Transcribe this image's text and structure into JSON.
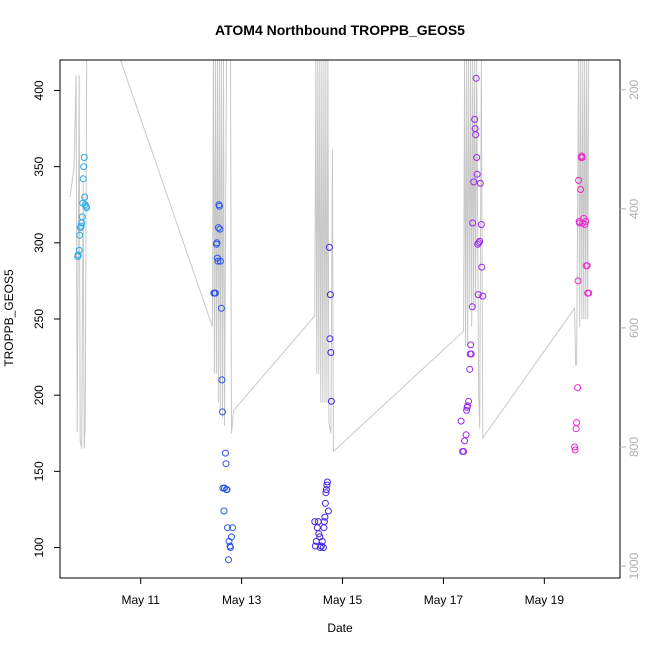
{
  "chart_data": {
    "type": "scatter",
    "title": "ATOM4 Northbound TROPPB_GEOS5",
    "xlabel": "Date",
    "ylabel": "TROPPB_GEOS5",
    "x_unit": "day of May",
    "xlim": [
      9.4,
      20.5
    ],
    "ylim": [
      80,
      420
    ],
    "x_ticks": [
      {
        "value": 11,
        "label": "May 11"
      },
      {
        "value": 13,
        "label": "May 13"
      },
      {
        "value": 15,
        "label": "May 15"
      },
      {
        "value": 17,
        "label": "May 17"
      },
      {
        "value": 19,
        "label": "May 19"
      }
    ],
    "y_ticks": [
      100,
      150,
      200,
      250,
      300,
      350,
      400
    ],
    "right_axis": {
      "ylim": [
        1020,
        150
      ],
      "ticks": [
        200,
        400,
        600,
        800,
        1000
      ],
      "color": "#b0b0b0"
    },
    "colors": {
      "altitude_line": "#c8c8c8",
      "frame": "#000000",
      "group1": "#2aa8e8",
      "group2": "#2a55ee",
      "group3": "#3f26e8",
      "group4": "#9a28ee",
      "group5": "#ee28d2"
    },
    "series": [
      {
        "color_key": "group1",
        "points": [
          [
            9.75,
            291
          ],
          [
            9.76,
            292
          ],
          [
            9.78,
            295
          ],
          [
            9.79,
            305
          ],
          [
            9.8,
            310
          ],
          [
            9.82,
            311
          ],
          [
            9.83,
            313
          ],
          [
            9.84,
            317
          ],
          [
            9.85,
            326
          ],
          [
            9.86,
            342
          ],
          [
            9.87,
            350
          ],
          [
            9.88,
            356
          ],
          [
            9.89,
            330
          ],
          [
            9.9,
            325
          ],
          [
            9.92,
            324
          ],
          [
            9.93,
            323
          ]
        ]
      },
      {
        "color_key": "group2",
        "points": [
          [
            12.45,
            267
          ],
          [
            12.46,
            267
          ],
          [
            12.48,
            267
          ],
          [
            12.5,
            299
          ],
          [
            12.51,
            300
          ],
          [
            12.52,
            290
          ],
          [
            12.53,
            288
          ],
          [
            12.54,
            310
          ],
          [
            12.55,
            325
          ],
          [
            12.56,
            324
          ],
          [
            12.57,
            309
          ],
          [
            12.58,
            288
          ],
          [
            12.6,
            257
          ],
          [
            12.61,
            210
          ],
          [
            12.62,
            189
          ],
          [
            12.63,
            139
          ],
          [
            12.66,
            139
          ],
          [
            12.68,
            162
          ],
          [
            12.69,
            155
          ],
          [
            12.7,
            138
          ],
          [
            12.71,
            138
          ],
          [
            12.65,
            124
          ],
          [
            12.72,
            113
          ],
          [
            12.75,
            104
          ],
          [
            12.77,
            101
          ],
          [
            12.78,
            100
          ],
          [
            12.8,
            107
          ],
          [
            12.82,
            113
          ],
          [
            12.74,
            92
          ]
        ]
      },
      {
        "color_key": "group3",
        "points": [
          [
            14.45,
            117
          ],
          [
            14.46,
            101
          ],
          [
            14.48,
            104
          ],
          [
            14.5,
            113
          ],
          [
            14.52,
            117
          ],
          [
            14.53,
            109
          ],
          [
            14.55,
            107
          ],
          [
            14.56,
            100
          ],
          [
            14.58,
            101
          ],
          [
            14.6,
            104
          ],
          [
            14.62,
            100
          ],
          [
            14.63,
            113
          ],
          [
            14.64,
            117
          ],
          [
            14.65,
            120
          ],
          [
            14.66,
            129
          ],
          [
            14.67,
            136
          ],
          [
            14.68,
            138
          ],
          [
            14.69,
            141
          ],
          [
            14.7,
            143
          ],
          [
            14.72,
            124
          ],
          [
            14.74,
            297
          ],
          [
            14.76,
            266
          ],
          [
            14.75,
            237
          ],
          [
            14.77,
            228
          ],
          [
            14.78,
            196
          ]
        ]
      },
      {
        "color_key": "group4",
        "points": [
          [
            17.38,
            163
          ],
          [
            17.4,
            163
          ],
          [
            17.42,
            170
          ],
          [
            17.45,
            174
          ],
          [
            17.35,
            183
          ],
          [
            17.46,
            190
          ],
          [
            17.47,
            192
          ],
          [
            17.48,
            193
          ],
          [
            17.5,
            196
          ],
          [
            17.52,
            217
          ],
          [
            17.53,
            227
          ],
          [
            17.54,
            233
          ],
          [
            17.55,
            227
          ],
          [
            17.57,
            258
          ],
          [
            17.58,
            313
          ],
          [
            17.6,
            340
          ],
          [
            17.62,
            381
          ],
          [
            17.63,
            375
          ],
          [
            17.64,
            371
          ],
          [
            17.65,
            408
          ],
          [
            17.66,
            356
          ],
          [
            17.67,
            345
          ],
          [
            17.68,
            299
          ],
          [
            17.7,
            300
          ],
          [
            17.72,
            301
          ],
          [
            17.73,
            339
          ],
          [
            17.75,
            312
          ],
          [
            17.76,
            284
          ],
          [
            17.69,
            266
          ],
          [
            17.78,
            265
          ]
        ]
      },
      {
        "color_key": "group5",
        "points": [
          [
            19.6,
            166
          ],
          [
            19.61,
            164
          ],
          [
            19.63,
            178
          ],
          [
            19.64,
            182
          ],
          [
            19.66,
            205
          ],
          [
            19.67,
            275
          ],
          [
            19.68,
            341
          ],
          [
            19.69,
            314
          ],
          [
            19.7,
            313
          ],
          [
            19.72,
            335
          ],
          [
            19.73,
            356
          ],
          [
            19.74,
            357
          ],
          [
            19.75,
            356
          ],
          [
            19.76,
            313
          ],
          [
            19.78,
            316
          ],
          [
            19.8,
            312
          ],
          [
            19.82,
            314
          ],
          [
            19.83,
            285
          ],
          [
            19.85,
            285
          ],
          [
            19.86,
            267
          ],
          [
            19.88,
            267
          ]
        ]
      }
    ],
    "altitude_trace": [
      [
        9.6,
        330
      ],
      [
        9.68,
        350
      ],
      [
        9.72,
        410
      ],
      [
        9.74,
        176
      ],
      [
        9.78,
        410
      ],
      [
        9.8,
        170
      ],
      [
        9.83,
        165
      ],
      [
        9.86,
        340
      ],
      [
        9.88,
        165
      ],
      [
        9.9,
        180
      ],
      [
        9.93,
        420
      ],
      [
        9.97,
        420
      ],
      [
        10.6,
        420
      ],
      [
        12.42,
        245
      ],
      [
        12.44,
        420
      ],
      [
        12.46,
        214
      ],
      [
        12.48,
        420
      ],
      [
        12.5,
        214
      ],
      [
        12.52,
        420
      ],
      [
        12.54,
        195
      ],
      [
        12.56,
        420
      ],
      [
        12.58,
        190
      ],
      [
        12.6,
        420
      ],
      [
        12.62,
        185
      ],
      [
        12.64,
        420
      ],
      [
        12.66,
        180
      ],
      [
        12.7,
        420
      ],
      [
        12.74,
        420
      ],
      [
        12.78,
        420
      ],
      [
        12.8,
        175
      ],
      [
        12.84,
        190
      ],
      [
        14.45,
        252
      ],
      [
        14.47,
        420
      ],
      [
        14.49,
        214
      ],
      [
        14.51,
        420
      ],
      [
        14.53,
        214
      ],
      [
        14.55,
        420
      ],
      [
        14.57,
        195
      ],
      [
        14.59,
        420
      ],
      [
        14.61,
        195
      ],
      [
        14.63,
        420
      ],
      [
        14.65,
        195
      ],
      [
        14.67,
        420
      ],
      [
        14.69,
        195
      ],
      [
        14.71,
        420
      ],
      [
        14.73,
        182
      ],
      [
        14.77,
        175
      ],
      [
        14.8,
        361
      ],
      [
        14.82,
        163
      ],
      [
        17.4,
        242
      ],
      [
        17.42,
        420
      ],
      [
        17.44,
        232
      ],
      [
        17.46,
        420
      ],
      [
        17.48,
        232
      ],
      [
        17.5,
        420
      ],
      [
        17.52,
        260
      ],
      [
        17.54,
        420
      ],
      [
        17.56,
        245
      ],
      [
        17.58,
        420
      ],
      [
        17.6,
        255
      ],
      [
        17.62,
        420
      ],
      [
        17.64,
        258
      ],
      [
        17.66,
        420
      ],
      [
        17.7,
        200
      ],
      [
        17.72,
        178
      ],
      [
        17.75,
        420
      ],
      [
        17.78,
        172
      ],
      [
        19.6,
        257
      ],
      [
        19.62,
        220
      ],
      [
        19.64,
        220
      ],
      [
        19.68,
        420
      ],
      [
        19.7,
        245
      ],
      [
        19.72,
        420
      ],
      [
        19.74,
        250
      ],
      [
        19.76,
        420
      ],
      [
        19.78,
        250
      ],
      [
        19.8,
        420
      ],
      [
        19.82,
        250
      ],
      [
        19.84,
        420
      ],
      [
        19.86,
        250
      ],
      [
        19.88,
        420
      ]
    ]
  }
}
